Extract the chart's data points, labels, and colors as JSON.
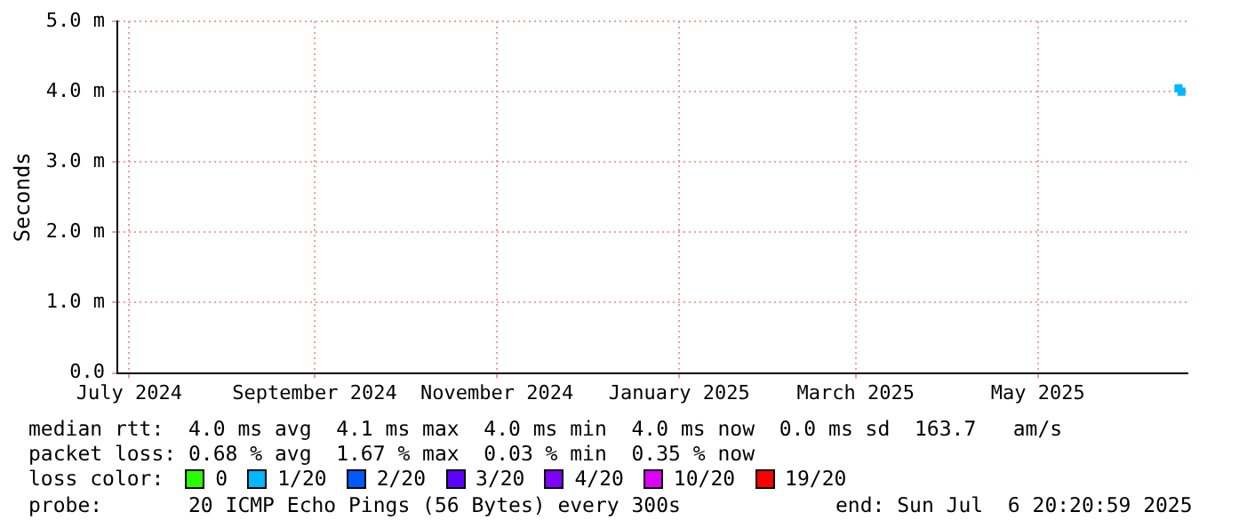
{
  "chart_data": {
    "type": "scatter",
    "ylabel": "Seconds",
    "x": [
      "2025-06-17",
      "2025-06-18"
    ],
    "series": [
      {
        "name": "0",
        "color": "#26ff00",
        "values": [
          null,
          null
        ]
      },
      {
        "name": "1/20",
        "color": "#00b8ff",
        "values": [
          4.05,
          4.0
        ]
      },
      {
        "name": "2/20",
        "color": "#0059ff",
        "values": [
          null,
          null
        ]
      },
      {
        "name": "3/20",
        "color": "#5e00ff",
        "values": [
          null,
          null
        ]
      },
      {
        "name": "4/20",
        "color": "#7e00ff",
        "values": [
          null,
          null
        ]
      },
      {
        "name": "10/20",
        "color": "#dd00ff",
        "values": [
          null,
          null
        ]
      },
      {
        "name": "19/20",
        "color": "#ff0000",
        "values": [
          null,
          null
        ]
      }
    ],
    "legend": "bottom",
    "legend_title": "loss color:",
    "marker": "square",
    "grid": true,
    "xlim": [
      "2024-06-27",
      "2025-06-20"
    ],
    "xticks": [
      {
        "value": "2024-07-01",
        "label": "July 2024"
      },
      {
        "value": "2024-09-01",
        "label": "September 2024"
      },
      {
        "value": "2024-11-01",
        "label": "November 2024"
      },
      {
        "value": "2025-01-01",
        "label": "January 2025"
      },
      {
        "value": "2025-03-01",
        "label": "March 2025"
      },
      {
        "value": "2025-05-01",
        "label": "May 2025"
      }
    ],
    "ylim": [
      0,
      5
    ],
    "yticks": [
      {
        "value": 0,
        "label": "0.0"
      },
      {
        "value": 1,
        "label": "1.0 m"
      },
      {
        "value": 2,
        "label": "2.0 m"
      },
      {
        "value": 3,
        "label": "3.0 m"
      },
      {
        "value": 4,
        "label": "4.0 m"
      },
      {
        "value": 5,
        "label": "5.0 m"
      }
    ],
    "annotations": [
      "median rtt:  4.0 ms avg  4.1 ms max  4.0 ms min  4.0 ms now  0.0 ms sd  163.7   am/s",
      "packet loss: 0.68 % avg  1.67 % max  0.03 % min  0.35 % now",
      "probe:       20 ICMP Echo Pings (56 Bytes) every 300s",
      "end: Sun Jul  6 20:20:59 2025"
    ]
  }
}
